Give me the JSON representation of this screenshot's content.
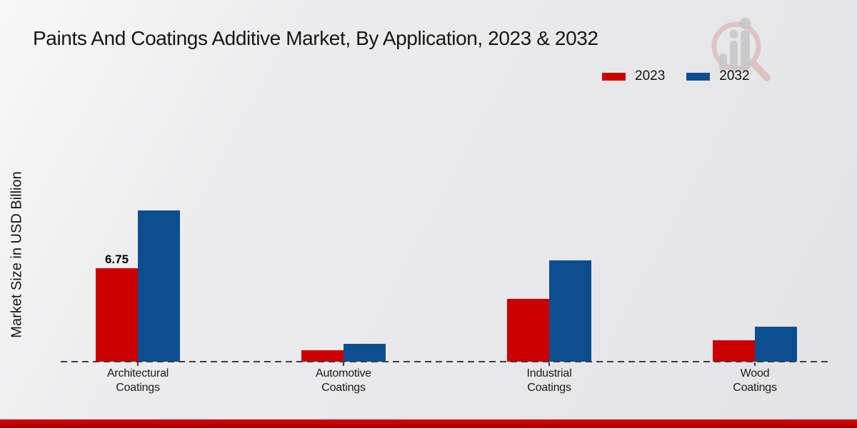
{
  "chart_data": {
    "type": "bar",
    "title": "Paints And Coatings Additive Market, By Application, 2023 & 2032",
    "ylabel": "Market Size in USD Billion",
    "xlabel": "",
    "categories": [
      "Architectural Coatings",
      "Automotive Coatings",
      "Industrial Coatings",
      "Wood Coatings"
    ],
    "series": [
      {
        "name": "2023",
        "color": "#cc0000",
        "values": [
          6.75,
          0.82,
          4.55,
          1.55
        ],
        "value_labels": [
          "6.75",
          "",
          "",
          ""
        ]
      },
      {
        "name": "2032",
        "color": "#0d4e91",
        "values": [
          10.92,
          1.31,
          7.34,
          2.52
        ],
        "value_labels": [
          "",
          "",
          "",
          ""
        ]
      }
    ],
    "ylim": [
      0,
      12
    ],
    "grid": false,
    "y_axis_ticks_visible": false,
    "baseline_style": "dashed",
    "legend_position": "top-right"
  },
  "watermark": {
    "icon": "magnifier-bar-chart-logo",
    "ring_color": "#d9a0a0",
    "figure_color": "#c7c7ca"
  },
  "footer": {
    "bar_color": "#c40000"
  }
}
